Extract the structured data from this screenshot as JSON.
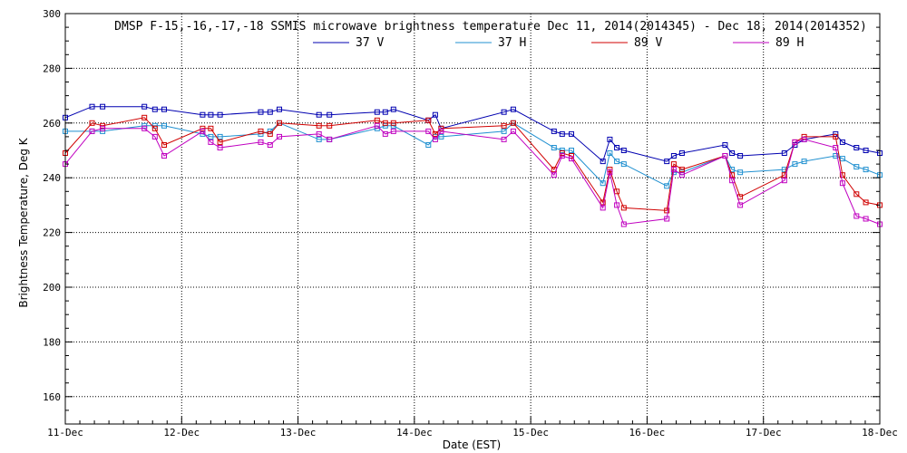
{
  "chart_data": {
    "type": "line",
    "title": "DMSP F-15,-16,-17,-18 SSMIS microwave brightness temperature Dec 11, 2014(2014345) - Dec 18, 2014(2014352)",
    "xlabel": "Date (EST)",
    "ylabel": "Brightness Temperature, Deg K",
    "xlim": [
      "11-Dec",
      "18-Dec"
    ],
    "ylim": [
      150,
      300
    ],
    "x_ticks": [
      "11-Dec",
      "12-Dec",
      "13-Dec",
      "14-Dec",
      "15-Dec",
      "16-Dec",
      "17-Dec",
      "18-Dec"
    ],
    "y_ticks": [
      160,
      180,
      200,
      220,
      240,
      260,
      280,
      300
    ],
    "grid": true,
    "legend_position": "top-center",
    "series": [
      {
        "name": "37 V",
        "color": "#0000b0",
        "points": [
          [
            11.0,
            262
          ],
          [
            11.23,
            266
          ],
          [
            11.32,
            266
          ],
          [
            11.68,
            266
          ],
          [
            11.77,
            265
          ],
          [
            11.85,
            265
          ],
          [
            12.18,
            263
          ],
          [
            12.25,
            263
          ],
          [
            12.33,
            263
          ],
          [
            12.68,
            264
          ],
          [
            12.76,
            264
          ],
          [
            12.84,
            265
          ],
          [
            13.18,
            263
          ],
          [
            13.27,
            263
          ],
          [
            13.68,
            264
          ],
          [
            13.75,
            264
          ],
          [
            13.82,
            265
          ],
          [
            14.12,
            261
          ],
          [
            14.18,
            263
          ],
          [
            14.23,
            258
          ],
          [
            14.77,
            264
          ],
          [
            14.85,
            265
          ],
          [
            15.2,
            257
          ],
          [
            15.27,
            256
          ],
          [
            15.35,
            256
          ],
          [
            15.62,
            246
          ],
          [
            15.68,
            254
          ],
          [
            15.74,
            251
          ],
          [
            15.8,
            250
          ],
          [
            16.17,
            246
          ],
          [
            16.23,
            248
          ],
          [
            16.3,
            249
          ],
          [
            16.67,
            252
          ],
          [
            16.73,
            249
          ],
          [
            16.8,
            248
          ],
          [
            17.18,
            249
          ],
          [
            17.27,
            252
          ],
          [
            17.35,
            254
          ],
          [
            17.62,
            256
          ],
          [
            17.68,
            253
          ],
          [
            17.8,
            251
          ],
          [
            17.88,
            250
          ],
          [
            18.0,
            249
          ]
        ]
      },
      {
        "name": "37 H",
        "color": "#2090d0",
        "points": [
          [
            11.0,
            257
          ],
          [
            11.23,
            257
          ],
          [
            11.32,
            257
          ],
          [
            11.68,
            259
          ],
          [
            11.77,
            259
          ],
          [
            11.85,
            259
          ],
          [
            12.18,
            256
          ],
          [
            12.25,
            255
          ],
          [
            12.33,
            255
          ],
          [
            12.68,
            256
          ],
          [
            12.76,
            257
          ],
          [
            12.84,
            260
          ],
          [
            13.18,
            254
          ],
          [
            13.27,
            254
          ],
          [
            13.68,
            258
          ],
          [
            13.75,
            259
          ],
          [
            13.82,
            259
          ],
          [
            14.12,
            252
          ],
          [
            14.18,
            255
          ],
          [
            14.23,
            255
          ],
          [
            14.77,
            257
          ],
          [
            14.85,
            260
          ],
          [
            15.2,
            251
          ],
          [
            15.27,
            250
          ],
          [
            15.35,
            250
          ],
          [
            15.62,
            238
          ],
          [
            15.68,
            249
          ],
          [
            15.74,
            246
          ],
          [
            15.8,
            245
          ],
          [
            16.17,
            237
          ],
          [
            16.23,
            242
          ],
          [
            16.3,
            242
          ],
          [
            16.67,
            248
          ],
          [
            16.73,
            243
          ],
          [
            16.8,
            242
          ],
          [
            17.18,
            243
          ],
          [
            17.27,
            245
          ],
          [
            17.35,
            246
          ],
          [
            17.62,
            248
          ],
          [
            17.68,
            247
          ],
          [
            17.8,
            244
          ],
          [
            17.88,
            243
          ],
          [
            18.0,
            241
          ]
        ]
      },
      {
        "name": "89 V",
        "color": "#d00000",
        "points": [
          [
            11.0,
            249
          ],
          [
            11.23,
            260
          ],
          [
            11.32,
            259
          ],
          [
            11.68,
            262
          ],
          [
            11.77,
            258
          ],
          [
            11.85,
            252
          ],
          [
            12.18,
            258
          ],
          [
            12.25,
            258
          ],
          [
            12.33,
            253
          ],
          [
            12.68,
            257
          ],
          [
            12.76,
            256
          ],
          [
            12.84,
            260
          ],
          [
            13.18,
            259
          ],
          [
            13.27,
            259
          ],
          [
            13.68,
            261
          ],
          [
            13.75,
            260
          ],
          [
            13.82,
            260
          ],
          [
            14.12,
            261
          ],
          [
            14.18,
            256
          ],
          [
            14.23,
            258
          ],
          [
            14.77,
            259
          ],
          [
            14.85,
            260
          ],
          [
            15.2,
            243
          ],
          [
            15.27,
            249
          ],
          [
            15.35,
            248
          ],
          [
            15.62,
            231
          ],
          [
            15.68,
            243
          ],
          [
            15.74,
            235
          ],
          [
            15.8,
            229
          ],
          [
            16.17,
            228
          ],
          [
            16.23,
            245
          ],
          [
            16.3,
            243
          ],
          [
            16.67,
            248
          ],
          [
            16.73,
            241
          ],
          [
            16.8,
            233
          ],
          [
            17.18,
            241
          ],
          [
            17.27,
            253
          ],
          [
            17.35,
            255
          ],
          [
            17.62,
            255
          ],
          [
            17.68,
            241
          ],
          [
            17.8,
            234
          ],
          [
            17.88,
            231
          ],
          [
            18.0,
            230
          ]
        ]
      },
      {
        "name": "89 H",
        "color": "#c000c0",
        "points": [
          [
            11.0,
            245
          ],
          [
            11.23,
            257
          ],
          [
            11.32,
            258
          ],
          [
            11.68,
            258
          ],
          [
            11.77,
            255
          ],
          [
            11.85,
            248
          ],
          [
            12.18,
            257
          ],
          [
            12.25,
            253
          ],
          [
            12.33,
            251
          ],
          [
            12.68,
            253
          ],
          [
            12.76,
            252
          ],
          [
            12.84,
            255
          ],
          [
            13.18,
            256
          ],
          [
            13.27,
            254
          ],
          [
            13.68,
            259
          ],
          [
            13.75,
            256
          ],
          [
            13.82,
            257
          ],
          [
            14.12,
            257
          ],
          [
            14.18,
            254
          ],
          [
            14.23,
            257
          ],
          [
            14.77,
            254
          ],
          [
            14.85,
            257
          ],
          [
            15.2,
            241
          ],
          [
            15.27,
            248
          ],
          [
            15.35,
            247
          ],
          [
            15.62,
            229
          ],
          [
            15.68,
            242
          ],
          [
            15.74,
            230
          ],
          [
            15.8,
            223
          ],
          [
            16.17,
            225
          ],
          [
            16.23,
            243
          ],
          [
            16.3,
            241
          ],
          [
            16.67,
            248
          ],
          [
            16.73,
            239
          ],
          [
            16.8,
            230
          ],
          [
            17.18,
            239
          ],
          [
            17.27,
            253
          ],
          [
            17.35,
            254
          ],
          [
            17.62,
            251
          ],
          [
            17.68,
            238
          ],
          [
            17.8,
            226
          ],
          [
            17.88,
            225
          ],
          [
            18.0,
            223
          ]
        ]
      }
    ]
  }
}
